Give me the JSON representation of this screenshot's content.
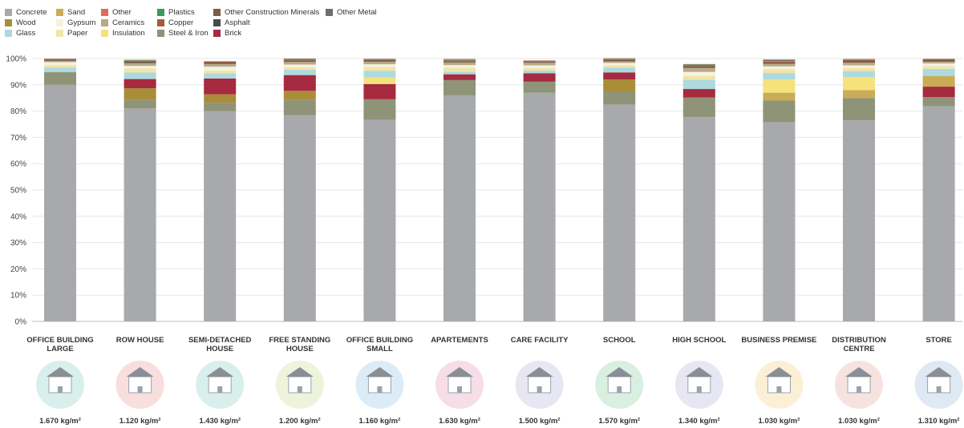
{
  "chart_data": {
    "type": "bar",
    "stacked": true,
    "ylim": [
      0,
      100
    ],
    "yticks": [
      "0%",
      "10%",
      "20%",
      "30%",
      "40%",
      "50%",
      "60%",
      "70%",
      "80%",
      "90%",
      "100%"
    ],
    "grid": true,
    "legend_position": "top-left",
    "categories": [
      [
        "OFFICE BUILDING",
        "LARGE"
      ],
      [
        "ROW HOUSE"
      ],
      [
        "SEMI-DETACHED",
        "HOUSE"
      ],
      [
        "FREE STANDING",
        "HOUSE"
      ],
      [
        "OFFICE BUILDING",
        "SMALL"
      ],
      [
        "APARTEMENTS"
      ],
      [
        "CARE FACILITY"
      ],
      [
        "SCHOOL"
      ],
      [
        "HIGH SCHOOL"
      ],
      [
        "BUSINESS PREMISE"
      ],
      [
        "DISTRIBUTION",
        "CENTRE"
      ],
      [
        "STORE"
      ]
    ],
    "density_labels": [
      "1.670 kg/m²",
      "1.120 kg/m²",
      "1.430 kg/m²",
      "1.200 kg/m²",
      "1.160 kg/m²",
      "1.630 kg/m²",
      "1.500 kg/m²",
      "1.570 kg/m²",
      "1.340 kg/m²",
      "1.030 kg/m²",
      "1.030 kg/m²",
      "1.310 kg/m²"
    ],
    "icons": [
      "office-tower-icon",
      "row-house-icon",
      "semi-detached-house-icon",
      "free-standing-house-icon",
      "small-office-icon",
      "apartment-icon",
      "care-facility-icon",
      "school-icon",
      "high-school-icon",
      "business-premise-icon",
      "distribution-centre-icon",
      "store-icon"
    ],
    "icon_bg_colors": [
      "#d9efec",
      "#f9dede",
      "#d9efec",
      "#eef3dc",
      "#dcecf7",
      "#f6dde6",
      "#e7e7f4",
      "#d9efe0",
      "#e7e7f4",
      "#fbf0d6",
      "#f6e3e0",
      "#dfe9f3"
    ],
    "series": [
      {
        "name": "Concrete",
        "color": "#a7a9ac",
        "values": [
          90,
          81,
          80,
          78.5,
          76.7,
          86,
          87,
          82.5,
          77.7,
          75.8,
          76.5,
          81.8
        ]
      },
      {
        "name": "Steel & Iron",
        "color": "#8f9378",
        "values": [
          4.8,
          3.2,
          3.2,
          5.7,
          7.8,
          5.8,
          4.2,
          5,
          7.5,
          8.2,
          8.5,
          3.5
        ]
      },
      {
        "name": "Wood",
        "color": "#a98d38",
        "values": [
          0,
          4.5,
          3.2,
          3.5,
          0,
          0,
          0,
          4.5,
          0,
          0,
          0,
          0
        ]
      },
      {
        "name": "Brick",
        "color": "#a62a40",
        "values": [
          0,
          3.5,
          6,
          6,
          5.8,
          2.2,
          3.2,
          2.7,
          3.2,
          0,
          0,
          4
        ]
      },
      {
        "name": "Sand",
        "color": "#c9ac55",
        "values": [
          0,
          0,
          0,
          0,
          0,
          0,
          0,
          0,
          0,
          3,
          3,
          4
        ]
      },
      {
        "name": "Insulation",
        "color": "#f5e27a",
        "values": [
          0,
          0,
          0,
          0,
          2.5,
          0,
          0,
          0,
          0,
          5,
          5,
          0
        ]
      },
      {
        "name": "Glass",
        "color": "#add9df",
        "values": [
          1.8,
          2.5,
          2,
          2,
          2.5,
          1,
          1,
          1.8,
          3.5,
          2.5,
          2.2,
          2.8
        ]
      },
      {
        "name": "Paper",
        "color": "#f1e5a8",
        "values": [
          1,
          1.5,
          1,
          1,
          1.5,
          1.5,
          1,
          1,
          1.5,
          1.5,
          1.2,
          1
        ]
      },
      {
        "name": "Gypsum",
        "color": "#f5f2e0",
        "values": [
          1,
          1,
          1.5,
          1,
          1,
          1,
          1,
          0.8,
          1.5,
          1,
          1,
          1
        ]
      },
      {
        "name": "Ceramics",
        "color": "#b5aa8a",
        "values": [
          0.5,
          1,
          1,
          1,
          1,
          1,
          1,
          0.6,
          1.5,
          1,
          1,
          0.7
        ]
      },
      {
        "name": "Other Construction Minerals",
        "color": "#7a5c4a",
        "values": [
          0.5,
          0.6,
          0.6,
          0.6,
          0.6,
          0.5,
          0.4,
          0.6,
          0.6,
          0.5,
          0.7,
          0.6
        ]
      },
      {
        "name": "Copper",
        "color": "#a65a3a",
        "values": [
          0.2,
          0.3,
          0.3,
          0.3,
          0.2,
          0.3,
          0.2,
          0.3,
          0.4,
          0.3,
          0.3,
          0.3
        ]
      },
      {
        "name": "Plastics",
        "color": "#3a9a5a",
        "values": [
          0.1,
          0.2,
          0.1,
          0.2,
          0.1,
          0.2,
          0.1,
          0.1,
          0.3,
          0.2,
          0.2,
          0.1
        ]
      },
      {
        "name": "Other",
        "color": "#e26b5e",
        "values": [
          0.1,
          0.1,
          0.1,
          0.1,
          0.1,
          0.1,
          0.1,
          0.1,
          0.1,
          0.2,
          0.1,
          0.1
        ]
      },
      {
        "name": "Asphalt",
        "color": "#4a4a4a",
        "values": [
          0,
          0,
          0,
          0.1,
          0,
          0,
          0,
          0,
          0,
          0.2,
          0,
          0
        ]
      },
      {
        "name": "Other Metal",
        "color": "#6d6e71",
        "values": [
          0,
          0.1,
          0,
          0,
          0.1,
          0.2,
          0.1,
          0.1,
          0.1,
          0.2,
          0.1,
          0
        ]
      }
    ]
  },
  "legend": {
    "columns": [
      [
        "Concrete",
        "Wood",
        "Glass"
      ],
      [
        "Sand",
        "Gypsum",
        "Paper"
      ],
      [
        "Other",
        "Ceramics",
        "Insulation"
      ],
      [
        "Plastics",
        "Copper",
        "Steel & Iron"
      ],
      [
        "Other Construction Minerals",
        "Asphalt",
        "Brick"
      ],
      [
        "Other Metal"
      ]
    ]
  }
}
